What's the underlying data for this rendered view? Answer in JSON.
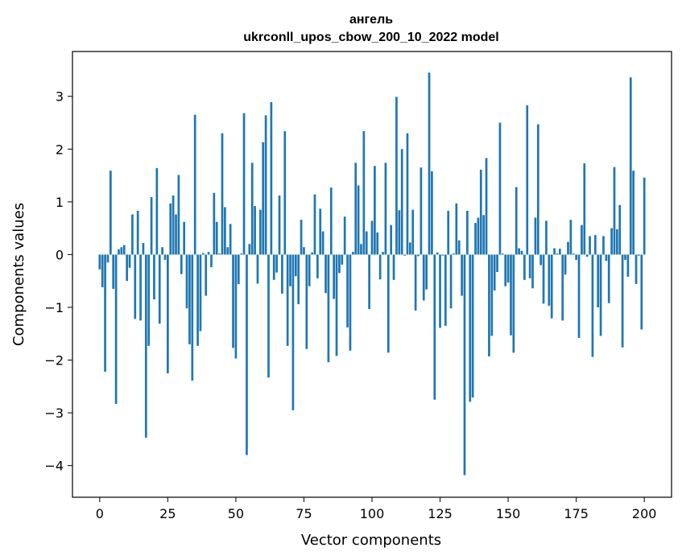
{
  "chart_data": {
    "type": "bar",
    "title_line1": "ангель",
    "title_line2": "ukrconll_upos_cbow_200_10_2022 model",
    "xlabel": "Vector components",
    "ylabel": "Components values",
    "xlim": [
      -10,
      210
    ],
    "ylim": [
      -4.6,
      3.85
    ],
    "xticks": [
      0,
      25,
      50,
      75,
      100,
      125,
      150,
      175,
      200
    ],
    "yticks": [
      -4,
      -3,
      -2,
      -1,
      0,
      1,
      2,
      3
    ],
    "xtick_labels": [
      "0",
      "25",
      "50",
      "75",
      "100",
      "125",
      "150",
      "175",
      "200"
    ],
    "ytick_labels": [
      "−4",
      "−3",
      "−2",
      "−1",
      "0",
      "1",
      "2",
      "3"
    ],
    "bar_color": "#1f77b4",
    "values": [
      -0.28,
      -0.62,
      -2.22,
      -0.15,
      1.59,
      -0.65,
      -2.83,
      0.1,
      0.14,
      0.18,
      -0.5,
      -0.25,
      0.76,
      -1.22,
      0.83,
      -1.25,
      0.22,
      -3.47,
      -1.73,
      1.09,
      -0.85,
      1.64,
      -1.31,
      0.14,
      -0.1,
      -2.25,
      0.97,
      1.12,
      0.76,
      1.51,
      -0.37,
      0.62,
      -1.02,
      -1.7,
      -2.39,
      2.65,
      -1.73,
      -1.45,
      0.03,
      -0.78,
      0.05,
      -0.24,
      1.17,
      0.62,
      0.02,
      2.3,
      0.9,
      0.14,
      0.58,
      -1.77,
      -1.97,
      -0.56,
      0.02,
      2.68,
      -3.8,
      0.2,
      1.74,
      0.92,
      -0.55,
      0.85,
      2.13,
      2.64,
      -2.33,
      2.89,
      -0.48,
      -0.34,
      1.12,
      -0.74,
      2.34,
      -1.73,
      -0.6,
      -2.95,
      -0.41,
      -0.94,
      0.66,
      0.14,
      -1.79,
      -0.6,
      0.04,
      1.14,
      -0.45,
      0.87,
      0.44,
      -0.73,
      -2.04,
      1.27,
      -0.84,
      -1.92,
      -0.35,
      -0.19,
      0.72,
      -1.38,
      -1.82,
      0.05,
      1.74,
      1.31,
      0.2,
      2.34,
      0.44,
      -1.03,
      0.64,
      1.68,
      0.42,
      -0.47,
      0.05,
      1.74,
      -1.86,
      0.56,
      -0.48,
      2.99,
      0.84,
      2.0,
      -0.02,
      2.3,
      0.23,
      0.85,
      -1.06,
      -0.03,
      1.65,
      -0.87,
      -0.66,
      3.45,
      1.58,
      -2.75,
      0.04,
      -1.39,
      -0.02,
      -1.35,
      0.83,
      -1.02,
      0.02,
      0.97,
      0.27,
      -0.78,
      -4.18,
      0.83,
      -2.79,
      -2.71,
      0.6,
      0.7,
      1.61,
      0.75,
      1.83,
      -1.93,
      -1.54,
      -0.68,
      -0.33,
      2.5,
      0.02,
      -0.6,
      -0.53,
      -1.53,
      -1.86,
      1.28,
      0.12,
      0.07,
      -0.48,
      2.83,
      -0.45,
      -0.64,
      0.7,
      2.47,
      -0.2,
      -0.93,
      0.64,
      -0.97,
      -1.21,
      0.12,
      0.02,
      0.11,
      -1.25,
      -0.38,
      0.24,
      0.66,
      0.02,
      -0.1,
      -1.58,
      0.56,
      1.73,
      -0.04,
      0.35,
      -1.94,
      0.37,
      -1.0,
      -1.54,
      0.35,
      -0.12,
      -0.92,
      0.5,
      1.66,
      0.48,
      0.94,
      -1.76,
      -0.1,
      -0.42,
      3.36,
      1.59,
      -0.56,
      -0.02,
      -1.42,
      1.46
    ]
  }
}
